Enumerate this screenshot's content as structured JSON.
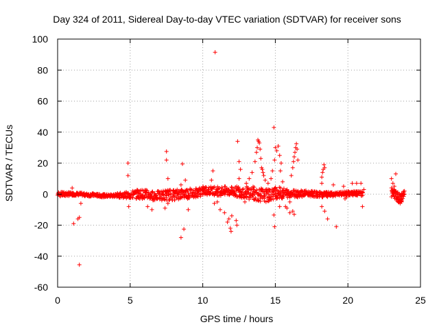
{
  "chart_data": {
    "type": "scatter",
    "title": "Day 324 of 2011, Sidereal Day-to-day VTEC variation (SDTVAR) for receiver sons",
    "xlabel": "GPS time / hours",
    "ylabel": "SDTVAR / TECUs",
    "xlim": [
      0,
      25
    ],
    "ylim": [
      -60,
      100
    ],
    "xticks": [
      "0",
      "5",
      "10",
      "15",
      "20",
      "25"
    ],
    "yticks": [
      "-60",
      "-40",
      "-20",
      "0",
      "20",
      "40",
      "60",
      "80",
      "100"
    ],
    "grid": true,
    "marker": "plus",
    "color": "#ff0000",
    "series": [
      {
        "name": "SDTVAR",
        "band": [
          [
            0.0,
            -1.5,
            1.5
          ],
          [
            0.5,
            -1.5,
            1.5
          ],
          [
            1.0,
            -1.0,
            1.0
          ],
          [
            1.5,
            -1.0,
            1.0
          ],
          [
            2.0,
            -1.5,
            0.5
          ],
          [
            2.5,
            -1.5,
            0.5
          ],
          [
            3.0,
            -2.0,
            0.0
          ],
          [
            3.5,
            -2.0,
            0.0
          ],
          [
            4.0,
            -2.0,
            0.5
          ],
          [
            4.5,
            -2.5,
            1.0
          ],
          [
            5.0,
            -3.0,
            2.0
          ],
          [
            5.5,
            -3.0,
            3.0
          ],
          [
            6.0,
            -3.0,
            3.0
          ],
          [
            6.5,
            -4.0,
            2.0
          ],
          [
            7.0,
            -4.0,
            2.0
          ],
          [
            7.5,
            -4.0,
            3.0
          ],
          [
            8.0,
            -4.0,
            3.0
          ],
          [
            8.5,
            -3.0,
            3.5
          ],
          [
            9.0,
            -3.0,
            4.0
          ],
          [
            9.5,
            -2.0,
            4.0
          ],
          [
            10.0,
            -1.0,
            5.0
          ],
          [
            10.5,
            -0.5,
            5.0
          ],
          [
            11.0,
            -1.0,
            5.0
          ],
          [
            11.5,
            -1.0,
            5.0
          ],
          [
            12.0,
            -1.5,
            5.0
          ],
          [
            12.5,
            -2.0,
            5.0
          ],
          [
            13.0,
            -3.0,
            5.0
          ],
          [
            13.5,
            -4.0,
            5.0
          ],
          [
            14.0,
            -5.0,
            4.0
          ],
          [
            14.5,
            -5.0,
            3.0
          ],
          [
            15.0,
            -3.0,
            5.0
          ],
          [
            15.5,
            -3.0,
            4.0
          ],
          [
            16.0,
            -2.0,
            3.0
          ],
          [
            16.5,
            -2.0,
            3.0
          ],
          [
            17.0,
            -1.5,
            2.5
          ],
          [
            17.5,
            -1.5,
            2.0
          ],
          [
            18.0,
            -2.0,
            1.5
          ],
          [
            18.5,
            -2.0,
            1.5
          ],
          [
            19.0,
            -1.5,
            1.0
          ],
          [
            19.5,
            -1.0,
            1.5
          ],
          [
            20.0,
            -1.0,
            2.0
          ],
          [
            20.5,
            -1.0,
            2.0
          ],
          [
            21.0,
            -1.5,
            2.0
          ]
        ],
        "band2": [
          [
            23.0,
            -2.0,
            5.0
          ],
          [
            23.3,
            -4.0,
            2.0
          ],
          [
            23.6,
            -6.0,
            0.0
          ],
          [
            23.9,
            -3.0,
            3.0
          ]
        ],
        "spikes": [
          [
            1.1,
            -19
          ],
          [
            1.4,
            -16
          ],
          [
            1.5,
            -15
          ],
          [
            1.5,
            -45.5
          ],
          [
            1.6,
            -6
          ],
          [
            1.0,
            4
          ],
          [
            4.85,
            20
          ],
          [
            4.85,
            12
          ],
          [
            4.9,
            -8
          ],
          [
            6.2,
            -8
          ],
          [
            6.5,
            -10
          ],
          [
            7.5,
            27.5
          ],
          [
            7.5,
            22
          ],
          [
            7.6,
            10
          ],
          [
            7.6,
            -6
          ],
          [
            7.4,
            -9
          ],
          [
            8.5,
            -28
          ],
          [
            8.7,
            -22.5
          ],
          [
            8.6,
            19.5
          ],
          [
            8.8,
            9
          ],
          [
            8.5,
            6
          ],
          [
            9.0,
            -10
          ],
          [
            10.85,
            91.5
          ],
          [
            10.7,
            15
          ],
          [
            10.6,
            9
          ],
          [
            11.0,
            -5
          ],
          [
            10.8,
            -6
          ],
          [
            11.2,
            -10
          ],
          [
            11.5,
            -12
          ],
          [
            11.7,
            -18
          ],
          [
            11.8,
            -16
          ],
          [
            11.9,
            -22
          ],
          [
            11.95,
            -24
          ],
          [
            12.0,
            -14
          ],
          [
            12.3,
            -17
          ],
          [
            12.35,
            -20
          ],
          [
            12.4,
            34
          ],
          [
            12.5,
            21
          ],
          [
            12.6,
            16
          ],
          [
            12.5,
            10
          ],
          [
            12.9,
            -5
          ],
          [
            13.0,
            7
          ],
          [
            13.2,
            10
          ],
          [
            13.4,
            14
          ],
          [
            13.6,
            21
          ],
          [
            13.7,
            27
          ],
          [
            13.75,
            30
          ],
          [
            13.8,
            35
          ],
          [
            13.85,
            34
          ],
          [
            13.9,
            33
          ],
          [
            13.95,
            29
          ],
          [
            14.0,
            23
          ],
          [
            14.05,
            17
          ],
          [
            14.1,
            16
          ],
          [
            14.15,
            14
          ],
          [
            14.2,
            12
          ],
          [
            14.3,
            9
          ],
          [
            14.5,
            7
          ],
          [
            14.7,
            10
          ],
          [
            14.8,
            15
          ],
          [
            14.9,
            43
          ],
          [
            14.95,
            22
          ],
          [
            15.0,
            30
          ],
          [
            15.1,
            28
          ],
          [
            15.2,
            31
          ],
          [
            15.3,
            25
          ],
          [
            15.35,
            15
          ],
          [
            15.4,
            20
          ],
          [
            15.5,
            8
          ],
          [
            14.9,
            -13.5
          ],
          [
            14.95,
            -21
          ],
          [
            15.3,
            -8
          ],
          [
            15.7,
            -8
          ],
          [
            15.8,
            -9
          ],
          [
            16.0,
            -12
          ],
          [
            16.0,
            -5
          ],
          [
            16.1,
            12
          ],
          [
            16.2,
            17
          ],
          [
            16.25,
            21
          ],
          [
            16.3,
            24
          ],
          [
            16.35,
            27
          ],
          [
            16.4,
            30
          ],
          [
            16.45,
            32.5
          ],
          [
            16.5,
            29
          ],
          [
            16.55,
            22
          ],
          [
            16.2,
            -11
          ],
          [
            16.3,
            -13
          ],
          [
            18.2,
            -8
          ],
          [
            18.4,
            -11
          ],
          [
            18.2,
            11
          ],
          [
            18.25,
            14
          ],
          [
            18.3,
            16
          ],
          [
            18.35,
            19
          ],
          [
            18.4,
            17
          ],
          [
            18.2,
            7
          ],
          [
            18.6,
            -16
          ],
          [
            19.0,
            6
          ],
          [
            19.2,
            -21
          ],
          [
            19.7,
            5
          ],
          [
            19.8,
            -3
          ],
          [
            19.9,
            -2
          ],
          [
            20.3,
            7
          ],
          [
            20.6,
            7
          ],
          [
            20.9,
            7
          ],
          [
            21.0,
            -8
          ],
          [
            21.1,
            3
          ],
          [
            20.4,
            0
          ],
          [
            23.0,
            10
          ],
          [
            23.1,
            7
          ],
          [
            23.2,
            5
          ],
          [
            23.3,
            13
          ],
          [
            23.6,
            -6
          ],
          [
            23.9,
            2
          ]
        ]
      }
    ]
  }
}
